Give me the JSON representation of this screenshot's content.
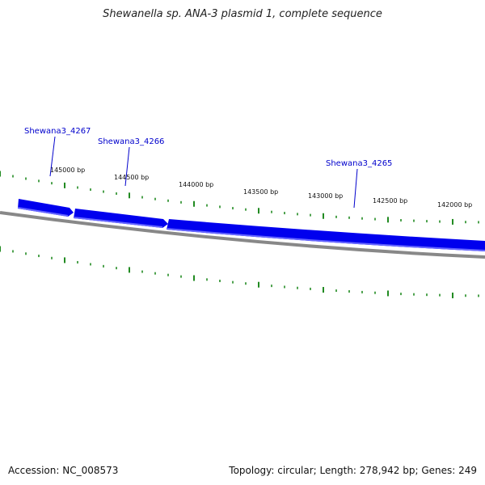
{
  "map": {
    "title": "Shewanella sp. ANA-3 plasmid 1, complete sequence",
    "accession_text": "Accession: NC_008573",
    "summary_text": "Topology: circular; Length: 278,942 bp; Genes: 249"
  },
  "colors": {
    "gene_fill": "#0000ee",
    "gene_highlight": "#6666ff",
    "tick": "#228b22",
    "backbone": "#888888",
    "label": "#0000cc"
  },
  "scale_labels": [
    "145000 bp",
    "144500 bp",
    "144000 bp",
    "143500 bp",
    "143000 bp",
    "142500 bp",
    "142000 bp"
  ],
  "genes": [
    {
      "name": "Shewana3_4267"
    },
    {
      "name": "Shewana3_4266"
    },
    {
      "name": "Shewana3_4265"
    }
  ]
}
